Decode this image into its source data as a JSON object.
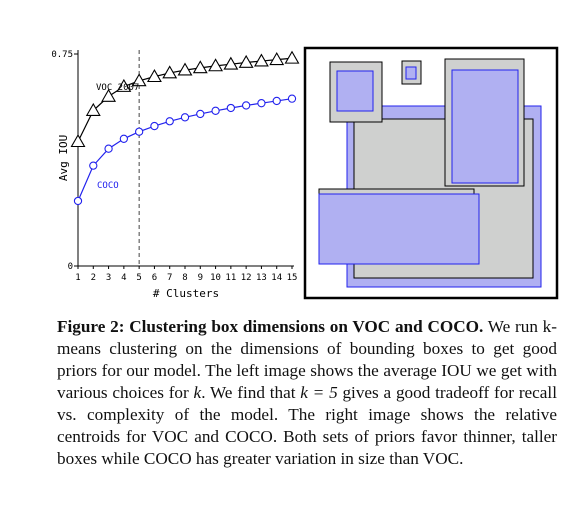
{
  "chart_data": {
    "type": "line",
    "xlabel": "# Clusters",
    "ylabel": "Avg IOU",
    "x": [
      1,
      2,
      3,
      4,
      5,
      6,
      7,
      8,
      9,
      10,
      11,
      12,
      13,
      14,
      15
    ],
    "xlim": [
      1,
      15
    ],
    "ylim": [
      0,
      0.75
    ],
    "yticks": [
      "0",
      "0.75"
    ],
    "xticks": [
      "1",
      "2",
      "3",
      "4",
      "5",
      "6",
      "7",
      "8",
      "9",
      "10",
      "11",
      "12",
      "13",
      "14",
      "15"
    ],
    "marker_line_x": 5,
    "series": [
      {
        "name": "VOC 2007",
        "marker": "triangle",
        "color": "#000000",
        "values": [
          0.44,
          0.55,
          0.6,
          0.635,
          0.655,
          0.67,
          0.683,
          0.693,
          0.701,
          0.708,
          0.714,
          0.72,
          0.725,
          0.73,
          0.735
        ]
      },
      {
        "name": "COCO",
        "marker": "circle",
        "color": "#2222ee",
        "values": [
          0.23,
          0.355,
          0.415,
          0.45,
          0.475,
          0.495,
          0.512,
          0.526,
          0.538,
          0.549,
          0.559,
          0.568,
          0.576,
          0.584,
          0.592
        ]
      }
    ]
  },
  "centroids": {
    "voc_fill": "#cfd0cf",
    "coco_fill": "#b0b0f2",
    "coco_stroke": "#2222ee"
  },
  "caption": {
    "label": "Figure 2: Clustering box dimensions on VOC and COCO.",
    "t1": " We run k-means clustering on the dimensions of bounding boxes to get good priors for our model. The left image shows the average IOU we get with various choices for ",
    "m1": "k",
    "t2": ". We find that ",
    "m2": "k = 5",
    "t3": " gives a good tradeoff for recall vs. complexity of the model. The right image shows the relative centroids for VOC and COCO. Both sets of priors favor thinner, taller boxes while COCO has greater variation in size than VOC."
  }
}
